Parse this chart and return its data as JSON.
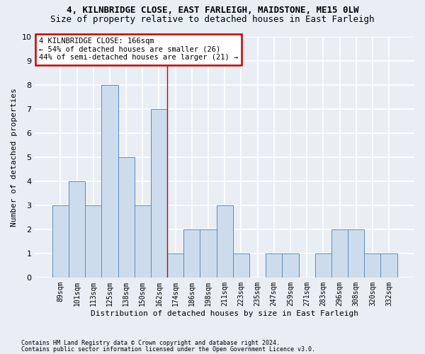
{
  "title_line1": "4, KILNBRIDGE CLOSE, EAST FARLEIGH, MAIDSTONE, ME15 0LW",
  "title_line2": "Size of property relative to detached houses in East Farleigh",
  "xlabel": "Distribution of detached houses by size in East Farleigh",
  "ylabel": "Number of detached properties",
  "categories": [
    "89sqm",
    "101sqm",
    "113sqm",
    "125sqm",
    "138sqm",
    "150sqm",
    "162sqm",
    "174sqm",
    "186sqm",
    "198sqm",
    "211sqm",
    "223sqm",
    "235sqm",
    "247sqm",
    "259sqm",
    "271sqm",
    "283sqm",
    "296sqm",
    "308sqm",
    "320sqm",
    "332sqm"
  ],
  "values": [
    3,
    4,
    3,
    8,
    5,
    3,
    7,
    1,
    2,
    2,
    3,
    1,
    0,
    1,
    1,
    0,
    1,
    2,
    2,
    1,
    1
  ],
  "vline_x": 6.5,
  "bar_color": "#cddcec",
  "bar_edge_color": "#5b8db8",
  "annotation_text": "4 KILNBRIDGE CLOSE: 166sqm\n← 54% of detached houses are smaller (26)\n44% of semi-detached houses are larger (21) →",
  "annotation_box_facecolor": "#ffffff",
  "annotation_box_edgecolor": "#cc0000",
  "vline_color": "#cc0000",
  "ylim": [
    0,
    10
  ],
  "yticks": [
    0,
    1,
    2,
    3,
    4,
    5,
    6,
    7,
    8,
    9,
    10
  ],
  "bg_color": "#e8eef4",
  "grid_color": "#ffffff",
  "footer1": "Contains HM Land Registry data © Crown copyright and database right 2024.",
  "footer2": "Contains public sector information licensed under the Open Government Licence v3.0.",
  "title_fontsize": 9,
  "subtitle_fontsize": 9,
  "ylabel_fontsize": 8,
  "xlabel_fontsize": 8,
  "tick_fontsize": 7,
  "annotation_fontsize": 7.5,
  "footer_fontsize": 6
}
